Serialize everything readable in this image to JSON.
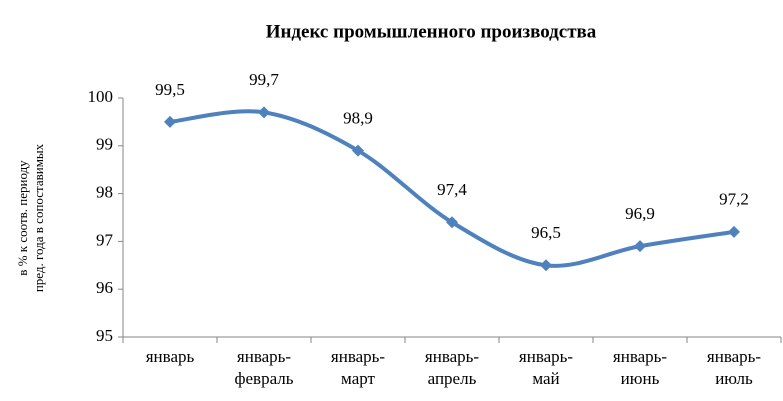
{
  "chart_data": {
    "type": "line",
    "title": "Индекс промышленного производства",
    "ylabel": [
      "в % к соотв. периоду",
      "пред. года в сопоставимых"
    ],
    "categories": [
      "январь",
      "январь-февраль",
      "январь-март",
      "январь-апрель",
      "январь-май",
      "январь-июнь",
      "январь-июль"
    ],
    "series": [
      {
        "name": "Индекс",
        "color": "#4f81bd",
        "values": [
          99.5,
          99.7,
          98.9,
          97.4,
          96.5,
          96.9,
          97.2
        ],
        "value_labels": [
          "99,5",
          "99,7",
          "98,9",
          "97,4",
          "96,5",
          "96,9",
          "97,2"
        ]
      }
    ],
    "ylim": [
      95,
      100
    ],
    "yticks": [
      95,
      96,
      97,
      98,
      99,
      100
    ],
    "grid": false,
    "smooth": true
  }
}
